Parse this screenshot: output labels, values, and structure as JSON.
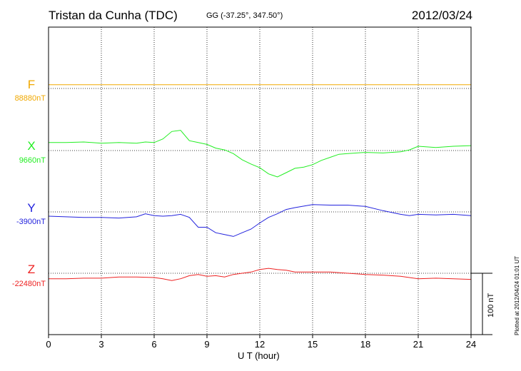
{
  "header": {
    "station": "Tristan da Cunha (TDC)",
    "coords": "GG (-37.25°, 347.50°)",
    "date": "2012/03/24"
  },
  "footer": {
    "plotted": "Plotted at 2012/04/24 01:01  UT",
    "scale_label": "100 nT"
  },
  "chart_data": {
    "type": "line",
    "title": "Tristan da Cunha (TDC)",
    "xlabel": "U T (hour)",
    "ylabel": "",
    "xlim": [
      0,
      24
    ],
    "xticks": [
      0,
      3,
      6,
      9,
      12,
      15,
      18,
      21,
      24
    ],
    "grid": true,
    "scale_bar_nT": 100,
    "series": [
      {
        "name": "F",
        "baseline_label": "88880nT",
        "baseline_nT": 88880,
        "color": "#f0a800",
        "x": [
          0,
          24
        ],
        "y": [
          88886,
          88886
        ]
      },
      {
        "name": "X",
        "baseline_label": "9660nT",
        "baseline_nT": 9660,
        "color": "#22ee22",
        "x": [
          0,
          1,
          2,
          3,
          4,
          5,
          5.5,
          6,
          6.5,
          7,
          7.5,
          8,
          8.5,
          9,
          9.5,
          10,
          10.5,
          11,
          11.5,
          12,
          12.5,
          13,
          13.5,
          14,
          14.5,
          15,
          15.5,
          16,
          16.5,
          17,
          18,
          19,
          20,
          20.5,
          21,
          22,
          23,
          24
        ],
        "y": [
          9673,
          9673,
          9674,
          9672,
          9673,
          9672,
          9674,
          9673,
          9679,
          9691,
          9693,
          9676,
          9673,
          9670,
          9664,
          9661,
          9655,
          9645,
          9638,
          9632,
          9622,
          9617,
          9624,
          9631,
          9633,
          9637,
          9644,
          9649,
          9654,
          9655,
          9657,
          9656,
          9658,
          9661,
          9667,
          9665,
          9667,
          9668
        ]
      },
      {
        "name": "Y",
        "baseline_label": "-3900nT",
        "baseline_nT": -3900,
        "color": "#2222dd",
        "x": [
          0,
          1,
          2,
          3,
          4,
          5,
          5.5,
          6,
          6.5,
          7,
          7.5,
          8,
          8.5,
          9,
          9.5,
          10,
          10.5,
          11,
          11.5,
          12,
          12.5,
          13,
          13.5,
          14,
          15,
          16,
          17,
          18,
          19,
          20,
          20.5,
          21,
          22,
          23,
          24
        ],
        "y": [
          -3907,
          -3908,
          -3909,
          -3909,
          -3910,
          -3908,
          -3903,
          -3906,
          -3907,
          -3906,
          -3904,
          -3909,
          -3925,
          -3925,
          -3934,
          -3937,
          -3940,
          -3934,
          -3928,
          -3918,
          -3909,
          -3903,
          -3896,
          -3893,
          -3888,
          -3889,
          -3889,
          -3891,
          -3898,
          -3904,
          -3906,
          -3904,
          -3905,
          -3904,
          -3906
        ]
      },
      {
        "name": "Z",
        "baseline_label": "-22480nT",
        "baseline_nT": -22480,
        "color": "#ee2222",
        "x": [
          0,
          1,
          2,
          3,
          4,
          5,
          6,
          6.5,
          7,
          7.5,
          8,
          8.5,
          9,
          9.5,
          10,
          10.5,
          11,
          11.5,
          12,
          12.5,
          13,
          13.5,
          14,
          15,
          16,
          17,
          18,
          19,
          20,
          21,
          22,
          23,
          24
        ],
        "y": [
          -22489,
          -22489,
          -22488,
          -22488,
          -22486,
          -22486,
          -22487,
          -22489,
          -22492,
          -22489,
          -22484,
          -22482,
          -22485,
          -22484,
          -22486,
          -22482,
          -22480,
          -22478,
          -22474,
          -22472,
          -22474,
          -22475,
          -22478,
          -22478,
          -22478,
          -22480,
          -22482,
          -22483,
          -22485,
          -22489,
          -22488,
          -22489,
          -22490
        ]
      }
    ]
  }
}
